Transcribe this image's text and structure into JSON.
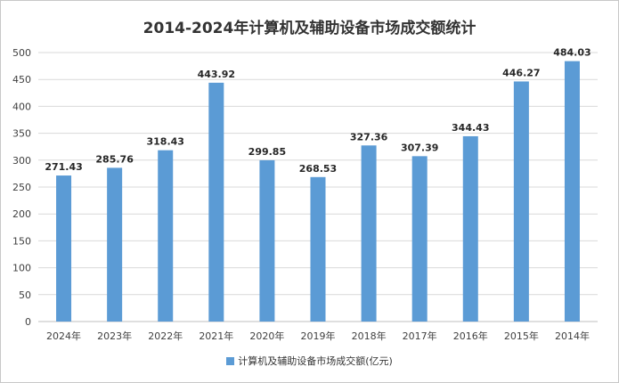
{
  "chart_data": {
    "type": "bar",
    "title": "2014-2024年计算机及辅助设备市场成交额统计",
    "categories": [
      "2024年",
      "2023年",
      "2022年",
      "2021年",
      "2020年",
      "2019年",
      "2018年",
      "2017年",
      "2016年",
      "2015年",
      "2014年"
    ],
    "series": [
      {
        "name": "计算机及辅助设备市场成交额(亿元)",
        "values": [
          271.43,
          285.76,
          318.43,
          443.92,
          299.85,
          268.53,
          327.36,
          307.39,
          344.43,
          446.27,
          484.03
        ],
        "color": "#5b9bd5"
      }
    ],
    "data_labels": [
      "271.43",
      "285.76",
      "318.43",
      "443.92",
      "299.85",
      "268.53",
      "327.36",
      "307.39",
      "344.43",
      "446.27",
      "484.03"
    ],
    "ylim": [
      0,
      500
    ],
    "yticks": [
      0,
      50,
      100,
      150,
      200,
      250,
      300,
      350,
      400,
      450,
      500
    ],
    "xlabel": "",
    "ylabel": "",
    "grid": true,
    "grid_color": "#d9d9d9",
    "legend_position": "bottom-center"
  }
}
